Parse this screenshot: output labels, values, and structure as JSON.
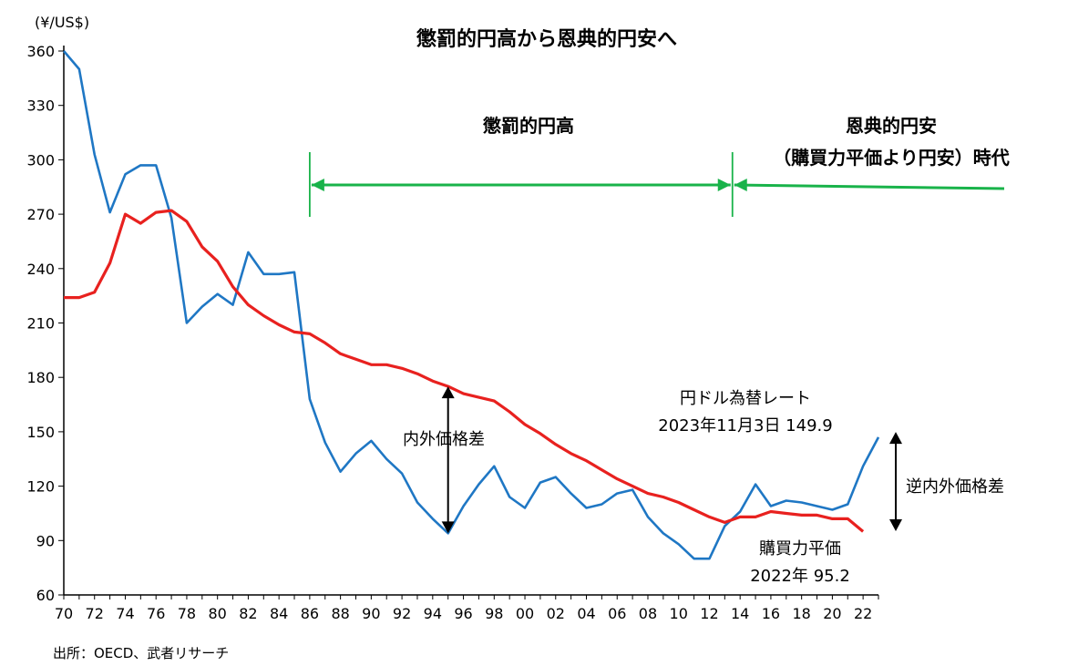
{
  "chart_data": {
    "type": "line",
    "title": "懲罰的円高から恩典的円安へ",
    "y_unit_label": "(¥/US$)",
    "ylim": [
      60,
      360
    ],
    "yticks": [
      60,
      90,
      120,
      150,
      180,
      210,
      240,
      270,
      300,
      330,
      360
    ],
    "xlim": [
      1970,
      2023
    ],
    "xtick_labels": [
      "70",
      "72",
      "74",
      "76",
      "78",
      "80",
      "82",
      "84",
      "86",
      "88",
      "90",
      "92",
      "94",
      "96",
      "98",
      "00",
      "02",
      "04",
      "06",
      "08",
      "10",
      "12",
      "14",
      "16",
      "18",
      "20",
      "22"
    ],
    "grid": false,
    "series": [
      {
        "name": "円ドル為替レート",
        "color": "#1f77c4",
        "x": [
          1970,
          1971,
          1972,
          1973,
          1974,
          1975,
          1976,
          1977,
          1978,
          1979,
          1980,
          1981,
          1982,
          1983,
          1984,
          1985,
          1986,
          1987,
          1988,
          1989,
          1990,
          1991,
          1992,
          1993,
          1994,
          1995,
          1996,
          1997,
          1998,
          1999,
          2000,
          2001,
          2002,
          2003,
          2004,
          2005,
          2006,
          2007,
          2008,
          2009,
          2010,
          2011,
          2012,
          2013,
          2014,
          2015,
          2016,
          2017,
          2018,
          2019,
          2020,
          2021,
          2022,
          2023
        ],
        "values": [
          360,
          350,
          303,
          271,
          292,
          297,
          297,
          268,
          210,
          219,
          226,
          220,
          249,
          237,
          237,
          238,
          168,
          144,
          128,
          138,
          145,
          135,
          127,
          111,
          102,
          94,
          109,
          121,
          131,
          114,
          108,
          122,
          125,
          116,
          108,
          110,
          116,
          118,
          103,
          94,
          88,
          80,
          80,
          98,
          106,
          121,
          109,
          112,
          111,
          109,
          107,
          110,
          131,
          147
        ]
      },
      {
        "name": "購買力平価",
        "color": "#e8211f",
        "x": [
          1970,
          1971,
          1972,
          1973,
          1974,
          1975,
          1976,
          1977,
          1978,
          1979,
          1980,
          1981,
          1982,
          1983,
          1984,
          1985,
          1986,
          1987,
          1988,
          1989,
          1990,
          1991,
          1992,
          1993,
          1994,
          1995,
          1996,
          1997,
          1998,
          1999,
          2000,
          2001,
          2002,
          2003,
          2004,
          2005,
          2006,
          2007,
          2008,
          2009,
          2010,
          2011,
          2012,
          2013,
          2014,
          2015,
          2016,
          2017,
          2018,
          2019,
          2020,
          2021,
          2022
        ],
        "values": [
          224,
          224,
          227,
          243,
          270,
          265,
          271,
          272,
          266,
          252,
          244,
          230,
          220,
          214,
          209,
          205,
          204,
          199,
          193,
          190,
          187,
          187,
          185,
          182,
          178,
          175,
          171,
          169,
          167,
          161,
          154,
          149,
          143,
          138,
          134,
          129,
          124,
          120,
          116,
          114,
          111,
          107,
          103,
          100,
          103,
          103,
          106,
          105,
          104,
          104,
          102,
          102,
          95
        ]
      }
    ],
    "annotations": {
      "period1_label": "懲罰的円高",
      "period2_line1": "恩典的円安",
      "period2_line2": "（購買力平価より円安）時代",
      "gap_label": "内外価格差",
      "reverse_gap_label": "逆内外価格差",
      "fx_label_line1": "円ドル為替レート",
      "fx_label_line2": "2023年11月3日   149.9",
      "ppp_label_line1": "購買力平価",
      "ppp_label_line2": "2022年  95.2"
    },
    "period_markers": {
      "start_x": 1986,
      "split_x": 2013.5,
      "end_x": 2023
    },
    "gap_arrow": {
      "x": 1995,
      "from_y": 94,
      "to_y": 175
    },
    "reverse_gap_arrow": {
      "x": 2025,
      "from_y": 95.2,
      "to_y": 149.9
    },
    "green_color": "#19b34a"
  },
  "source_note": "出所：OECD、武者リサーチ"
}
